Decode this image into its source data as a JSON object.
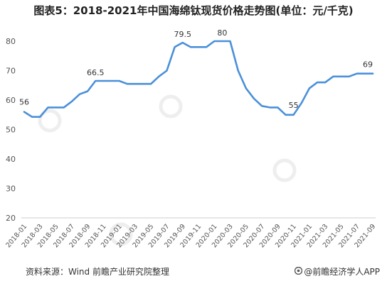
{
  "chart_data": {
    "type": "line",
    "title": "图表5：2018-2021年中国海绵钛现货价格走势图(单位：元/千克)",
    "xlabel": "",
    "ylabel": "",
    "ylim": [
      20,
      80
    ],
    "yticks": [
      20,
      30,
      40,
      50,
      60,
      70,
      80
    ],
    "grid": false,
    "legend": "none",
    "x_tick_labels": [
      "2018-01",
      "2018-03",
      "2018-05",
      "2018-07",
      "2018-09",
      "2018-11",
      "2019-01",
      "2019-03",
      "2019-05",
      "2019-07",
      "2019-09",
      "2019-11",
      "2020-01",
      "2020-03",
      "2020-05",
      "2020-07",
      "2020-09",
      "2020-11",
      "2021-01",
      "2021-03",
      "2021-05",
      "2021-07",
      "2021-09"
    ],
    "series": [
      {
        "color": "#4a90d9",
        "values": [
          56,
          54.3,
          54.3,
          57.5,
          57.5,
          57.5,
          59.5,
          62,
          63,
          66.5,
          66.5,
          66.5,
          66.5,
          65.5,
          65.5,
          65.5,
          65.5,
          68,
          70,
          78,
          79.5,
          78,
          78,
          78,
          80,
          80,
          80,
          70,
          64,
          60.5,
          58,
          57.5,
          57.5,
          55,
          55,
          59,
          64,
          66,
          66,
          68,
          68,
          68,
          69,
          69,
          69
        ]
      }
    ],
    "data_labels": [
      {
        "index": 0,
        "text": "56"
      },
      {
        "index": 9,
        "text": "66.5"
      },
      {
        "index": 20,
        "text": "79.5"
      },
      {
        "index": 25,
        "text": "80"
      },
      {
        "index": 34,
        "text": "55"
      },
      {
        "index": 44,
        "text": "69"
      }
    ]
  },
  "footer": {
    "source": "资料来源：Wind 前瞻产业研究院整理",
    "brand": "@前瞻经济学人APP"
  }
}
